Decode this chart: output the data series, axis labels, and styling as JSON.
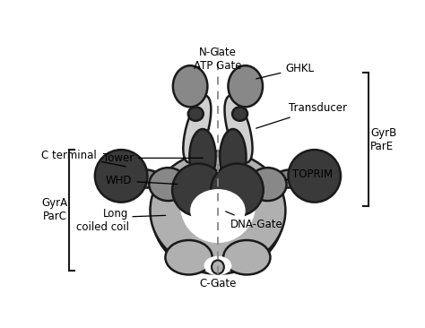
{
  "bg_color": "#ffffff",
  "outline_color": "#1a1a1a",
  "colors": {
    "light_gray": "#b0b0b0",
    "medium_gray": "#888888",
    "dark_gray": "#3a3a3a",
    "very_light_gray": "#d0d0d0",
    "coil_gray": "#a8a8a8"
  },
  "labels": {
    "n_gate": "N-Gate\nATP Gate",
    "c_gate": "C-Gate",
    "ghkl": "GHKL",
    "transducer": "Transducer",
    "toprim": "TOPRIM",
    "dna_gate": "DNA-Gate",
    "tower": "Tower",
    "whd": "WHD",
    "long_coiled": "Long\ncoiled coil",
    "c_terminal": "C terminal",
    "gyra_parc": "GyrA\nParC",
    "gyrb_pare": "GyrB\nParE"
  },
  "dashed_line_color": "#888888",
  "bracket_color": "#1a1a1a"
}
